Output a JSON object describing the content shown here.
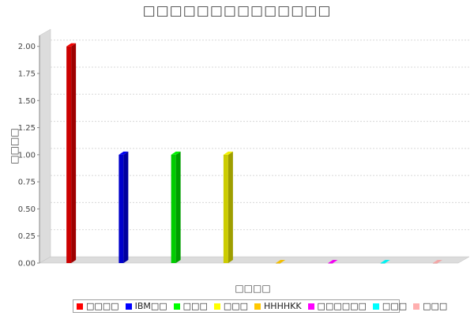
{
  "chart_data": {
    "type": "bar",
    "title": "□□□□□□□□□□□□□□",
    "xlabel": "□□□□",
    "ylabel": "□□□□",
    "ylim": [
      0,
      2.1
    ],
    "yticks": [
      "0.00",
      "0.25",
      "0.50",
      "0.75",
      "1.00",
      "1.25",
      "1.50",
      "1.75",
      "2.00"
    ],
    "grid": true,
    "legend_position": "bottom",
    "three_d": true,
    "series": [
      {
        "name": "□□□□",
        "color": "#ff0000",
        "values": [
          2,
          0,
          0,
          0,
          0,
          0,
          0,
          0
        ]
      },
      {
        "name": "IBM□□",
        "color": "#0000ff",
        "values": [
          0,
          1,
          0,
          0,
          0,
          0,
          0,
          0
        ]
      },
      {
        "name": "□□□",
        "color": "#00ff00",
        "values": [
          0,
          0,
          1,
          0,
          0,
          0,
          0,
          0
        ]
      },
      {
        "name": "□□□",
        "color": "#ffff00",
        "values": [
          0,
          0,
          0,
          1,
          0,
          0,
          0,
          0
        ]
      },
      {
        "name": "HHHHKK",
        "color": "#ffc800",
        "values": [
          0,
          0,
          0,
          0,
          0,
          0,
          0,
          0
        ]
      },
      {
        "name": "□□□□□□",
        "color": "#ff00ff",
        "values": [
          0,
          0,
          0,
          0,
          0,
          0,
          0,
          0
        ]
      },
      {
        "name": "□□□",
        "color": "#00ffff",
        "values": [
          0,
          0,
          0,
          0,
          0,
          0,
          0,
          0
        ]
      },
      {
        "name": "□□□",
        "color": "#ffafaf",
        "values": [
          0,
          0,
          0,
          0,
          0,
          0,
          0,
          0
        ]
      }
    ]
  }
}
